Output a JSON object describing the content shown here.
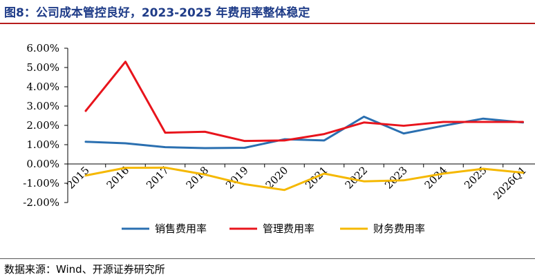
{
  "header": {
    "title": "图8：公司成本管控良好，2023-2025 年费用率整体稳定"
  },
  "footer": {
    "source": "数据来源：Wind、开源证券研究所"
  },
  "chart_data": {
    "type": "line",
    "categories": [
      "2015",
      "2016",
      "2017",
      "2018",
      "2019",
      "2020",
      "2021",
      "2022",
      "2023",
      "2024",
      "2025",
      "2026Q1"
    ],
    "series": [
      {
        "name": "销售费用率",
        "color": "#2a6fb0",
        "values": [
          1.15,
          1.07,
          0.87,
          0.82,
          0.84,
          1.28,
          1.22,
          2.45,
          1.58,
          1.98,
          2.35,
          2.15
        ]
      },
      {
        "name": "管理费用率",
        "color": "#e8141c",
        "values": [
          2.75,
          5.3,
          1.62,
          1.67,
          1.19,
          1.22,
          1.55,
          2.15,
          1.98,
          2.18,
          2.18,
          2.18
        ]
      },
      {
        "name": "财务费用率",
        "color": "#f5b800",
        "values": [
          -0.6,
          -0.2,
          -0.19,
          -0.55,
          -1.05,
          -1.35,
          -0.5,
          -0.9,
          -0.85,
          -0.5,
          -0.25,
          -0.45
        ]
      }
    ],
    "yticks": [
      "6.00%",
      "5.00%",
      "4.00%",
      "3.00%",
      "2.00%",
      "1.00%",
      "0.00%",
      "-1.00%",
      "-2.00%"
    ],
    "ylim": [
      -2,
      6
    ],
    "grid": false,
    "legend": "bottom"
  }
}
